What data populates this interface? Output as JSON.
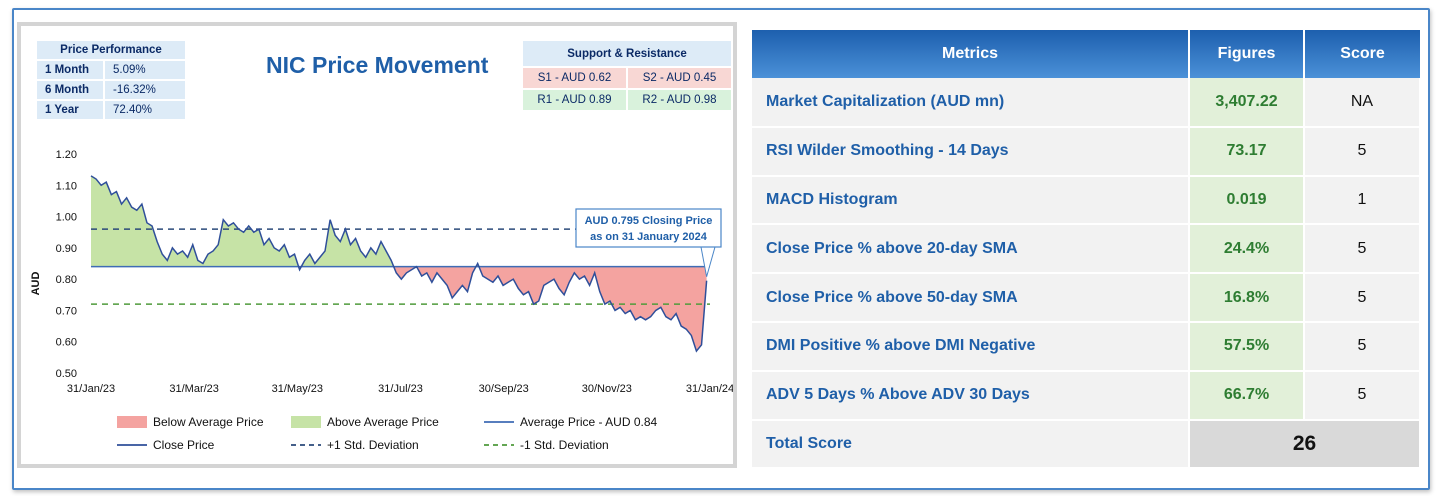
{
  "chart_panel": {
    "title": "NIC Price Movement",
    "price_performance": {
      "header": "Price Performance",
      "rows": [
        {
          "label": "1 Month",
          "value": "5.09%"
        },
        {
          "label": "6 Month",
          "value": "-16.32%"
        },
        {
          "label": "1 Year",
          "value": "72.40%"
        }
      ]
    },
    "support_resistance": {
      "header": "Support & Resistance",
      "supports": [
        "S1 - AUD 0.62",
        "S2 - AUD 0.45"
      ],
      "resistances": [
        "R1 - AUD 0.89",
        "R2 - AUD 0.98"
      ]
    },
    "annotation": [
      "AUD 0.795 Closing Price",
      "as on 31 January 2024"
    ]
  },
  "chart_data": {
    "type": "line",
    "ylabel": "AUD",
    "ylim": [
      0.5,
      1.2
    ],
    "y_ticks": [
      "0.50",
      "0.60",
      "0.70",
      "0.80",
      "0.90",
      "1.00",
      "1.10",
      "1.20"
    ],
    "x_ticks": [
      "31/Jan/23",
      "31/Mar/23",
      "31/May/23",
      "31/Jul/23",
      "30/Sep/23",
      "30/Nov/23",
      "31/Jan/24"
    ],
    "average_price": 0.84,
    "plus_1_std": 0.96,
    "minus_1_std": 0.72,
    "closing_price": 0.795,
    "series": [
      {
        "name": "Close Price",
        "x": [
          0,
          3,
          6,
          9,
          12,
          15,
          18,
          21,
          24,
          27,
          30,
          33,
          36,
          39,
          42,
          45,
          48,
          51,
          54,
          57,
          60,
          63,
          66,
          69,
          72,
          75,
          78,
          81,
          84,
          87,
          90,
          93,
          96,
          99,
          102,
          105,
          108,
          111,
          114,
          117,
          120,
          123,
          126,
          129,
          132,
          135,
          138,
          141,
          144,
          147,
          150,
          153,
          156,
          159,
          162,
          165,
          168,
          171,
          174,
          177,
          180,
          183,
          186,
          189,
          192,
          195,
          198,
          201,
          204,
          207,
          210,
          213,
          216,
          219,
          222,
          225,
          228,
          231,
          234,
          237,
          240,
          243,
          246,
          249,
          252,
          255,
          258,
          261,
          264,
          267,
          270,
          273,
          276,
          279,
          282,
          285,
          288,
          291,
          294,
          297,
          300,
          303,
          306,
          309,
          312,
          315,
          318,
          321,
          324,
          327,
          330,
          333,
          336,
          339,
          342,
          345,
          348,
          351,
          354,
          357,
          360,
          363
        ],
        "values": [
          1.13,
          1.12,
          1.1,
          1.11,
          1.07,
          1.08,
          1.04,
          1.06,
          1.03,
          1.02,
          1.04,
          0.98,
          0.97,
          0.92,
          0.88,
          0.86,
          0.9,
          0.88,
          0.89,
          0.87,
          0.91,
          0.86,
          0.85,
          0.88,
          0.89,
          0.91,
          0.99,
          0.97,
          0.98,
          0.96,
          0.95,
          0.97,
          0.95,
          0.96,
          0.91,
          0.93,
          0.9,
          0.89,
          0.91,
          0.87,
          0.88,
          0.83,
          0.86,
          0.88,
          0.85,
          0.87,
          0.89,
          0.99,
          0.94,
          0.92,
          0.96,
          0.91,
          0.93,
          0.89,
          0.87,
          0.9,
          0.88,
          0.92,
          0.89,
          0.86,
          0.82,
          0.8,
          0.82,
          0.83,
          0.84,
          0.81,
          0.82,
          0.79,
          0.82,
          0.8,
          0.78,
          0.74,
          0.76,
          0.78,
          0.76,
          0.82,
          0.85,
          0.81,
          0.8,
          0.79,
          0.81,
          0.78,
          0.79,
          0.8,
          0.77,
          0.75,
          0.76,
          0.72,
          0.73,
          0.78,
          0.79,
          0.8,
          0.77,
          0.75,
          0.79,
          0.82,
          0.8,
          0.81,
          0.78,
          0.82,
          0.76,
          0.72,
          0.73,
          0.7,
          0.71,
          0.69,
          0.7,
          0.67,
          0.68,
          0.67,
          0.68,
          0.7,
          0.71,
          0.68,
          0.67,
          0.69,
          0.65,
          0.64,
          0.62,
          0.57,
          0.59,
          0.795
        ]
      }
    ],
    "legend": [
      {
        "name": "Below Average Price",
        "kind": "fill",
        "color": "#f4a3a0"
      },
      {
        "name": "Above Average Price",
        "kind": "fill",
        "color": "#c6e3a6"
      },
      {
        "name": "Average Price - AUD 0.84",
        "kind": "line",
        "color": "#3f6cb5"
      },
      {
        "name": "Close Price",
        "kind": "line",
        "color": "#2f4f9a"
      },
      {
        "name": "+1 Std. Deviation",
        "kind": "dash",
        "color": "#2b4a7a"
      },
      {
        "name": "-1 Std. Deviation",
        "kind": "dash",
        "color": "#4f9a3b"
      }
    ],
    "grid": false,
    "legend_placement": "bottom"
  },
  "metrics_table": {
    "headers": [
      "Metrics",
      "Figures",
      "Score"
    ],
    "rows": [
      {
        "metric": "Market Capitalization (AUD mn)",
        "figure": "3,407.22",
        "score": "NA"
      },
      {
        "metric": "RSI Wilder Smoothing - 14 Days",
        "figure": "73.17",
        "score": "5"
      },
      {
        "metric": "MACD Histogram",
        "figure": "0.019",
        "score": "1"
      },
      {
        "metric": "Close Price % above 20-day SMA",
        "figure": "24.4%",
        "score": "5"
      },
      {
        "metric": "Close Price % above 50-day SMA",
        "figure": "16.8%",
        "score": "5"
      },
      {
        "metric": "DMI Positive % above DMI Negative",
        "figure": "57.5%",
        "score": "5"
      },
      {
        "metric": "ADV 5 Days % Above ADV 30 Days",
        "figure": "66.7%",
        "score": "5"
      }
    ],
    "total_label": "Total Score",
    "total_value": "26"
  },
  "colors": {
    "accent": "#1f5fa8",
    "header_gradient_top": "#1d5fae",
    "figure_bg": "#e2f0d9",
    "figure_text": "#2e7d32"
  }
}
